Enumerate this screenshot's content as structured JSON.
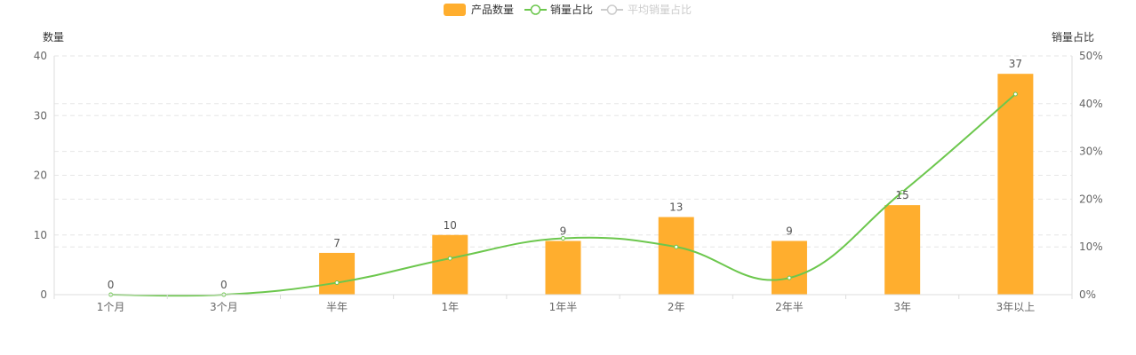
{
  "chart_data": {
    "type": "bar",
    "categories": [
      "1个月",
      "3个月",
      "半年",
      "1年",
      "1年半",
      "2年",
      "2年半",
      "3年",
      "3年以上"
    ],
    "series": [
      {
        "name": "产品数量",
        "type": "bar",
        "axis": "left",
        "values": [
          0,
          0,
          7,
          10,
          9,
          13,
          9,
          15,
          37
        ]
      },
      {
        "name": "销量占比",
        "type": "line",
        "axis": "right",
        "smooth": true,
        "values_percent": [
          0,
          0,
          2.5,
          7.6,
          11.8,
          10,
          3.5,
          21.5,
          42
        ]
      },
      {
        "name": "平均销量占比",
        "type": "line",
        "axis": "right",
        "legend_only": true
      }
    ],
    "yaxis_left": {
      "label": "数量",
      "ylim": [
        0,
        40
      ],
      "ticks": [
        0,
        10,
        20,
        30,
        40
      ]
    },
    "yaxis_right": {
      "label": "销量占比",
      "ylim": [
        0,
        50
      ],
      "ticks": [
        "0%",
        "10%",
        "20%",
        "30%",
        "40%",
        "50%"
      ],
      "tick_values": [
        0,
        10,
        20,
        30,
        40,
        50
      ]
    },
    "grid": "dashed horizontal",
    "legend_position": "top-center",
    "colors": {
      "bar": "#ffae2e",
      "line": "#6cc74d",
      "inactive": "#cccccc"
    }
  }
}
